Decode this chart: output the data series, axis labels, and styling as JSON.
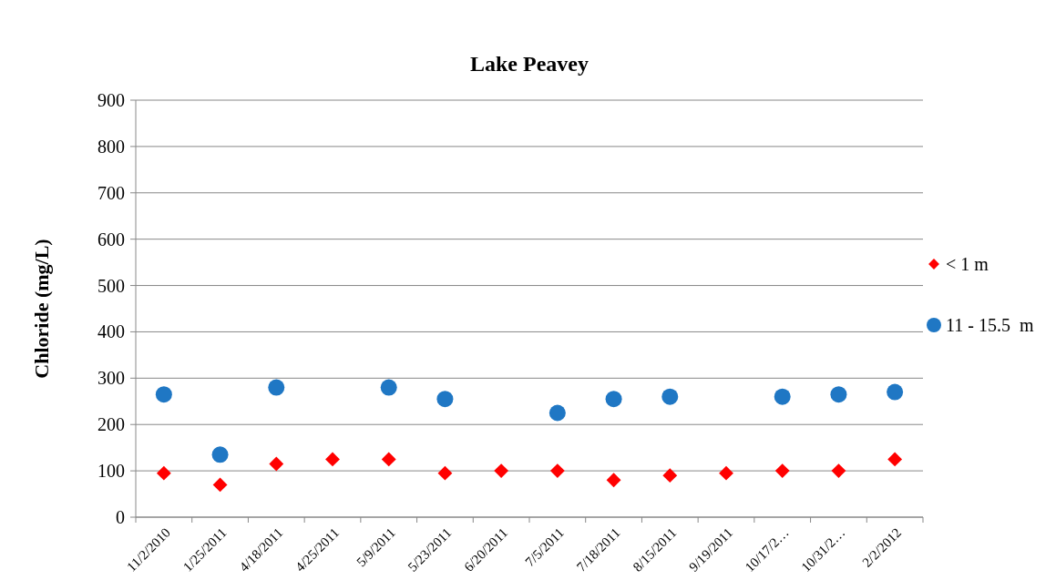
{
  "chart_data": {
    "type": "scatter",
    "title": "Lake Peavey",
    "ylabel": "Chloride (mg/L)",
    "categories": [
      "11/2/2010",
      "1/25/2011",
      "4/18/2011",
      "4/25/2011",
      "5/9/2011",
      "5/23/2011",
      "6/20/2011",
      "7/5/2011",
      "7/18/2011",
      "8/15/2011",
      "9/19/2011",
      "10/17/2…",
      "10/31/2…",
      "2/2/2012"
    ],
    "series": [
      {
        "name": "< 1 m",
        "color": "#ff0000",
        "marker": "diamond",
        "values": [
          95,
          70,
          115,
          125,
          125,
          95,
          100,
          100,
          80,
          90,
          95,
          100,
          100,
          125
        ]
      },
      {
        "name": "11 - 15.5  m",
        "color": "#1f77c4",
        "marker": "circle",
        "values": [
          265,
          135,
          280,
          null,
          280,
          255,
          null,
          225,
          255,
          260,
          null,
          260,
          265,
          270
        ]
      }
    ],
    "ylim": [
      0,
      900
    ],
    "yticks": [
      0,
      100,
      200,
      300,
      400,
      500,
      600,
      700,
      800,
      900
    ],
    "grid": "y",
    "legend": "right"
  }
}
